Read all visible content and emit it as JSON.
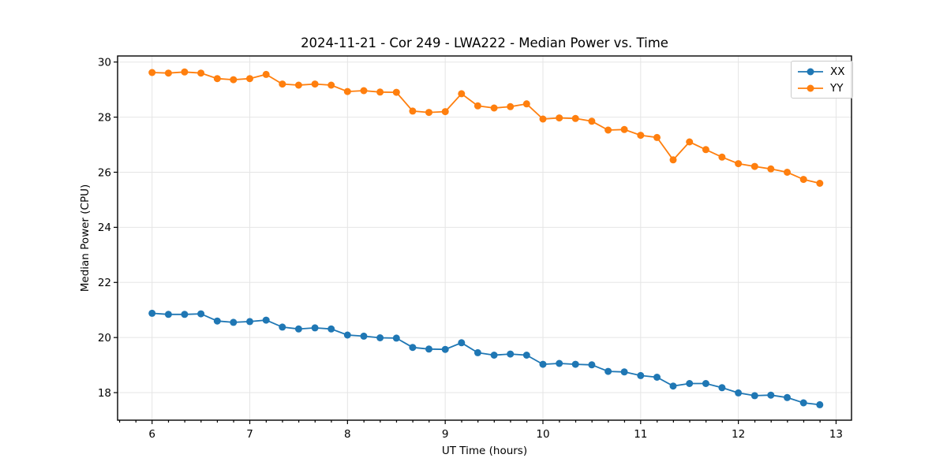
{
  "window": {
    "background": "#ffffff"
  },
  "chart_data": {
    "type": "line",
    "title": "2024-11-21 - Cor 249 - LWA222 - Median Power vs. Time",
    "xlabel": "UT Time (hours)",
    "ylabel": "Median Power (CPU)",
    "xlim": [
      5.647,
      13.158
    ],
    "ylim": [
      17.0,
      30.22
    ],
    "xticks": [
      6,
      7,
      8,
      9,
      10,
      11,
      12,
      13
    ],
    "yticks": [
      18,
      20,
      22,
      24,
      26,
      28,
      30
    ],
    "x_minor_tick_step": 0.1667,
    "grid": true,
    "legend": {
      "position": "upper right",
      "entries": [
        {
          "label": "XX",
          "color": "#1f77b4"
        },
        {
          "label": "YY",
          "color": "#ff7f0e"
        }
      ]
    },
    "x": [
      6.0,
      6.167,
      6.333,
      6.5,
      6.667,
      6.833,
      7.0,
      7.167,
      7.333,
      7.5,
      7.667,
      7.833,
      8.0,
      8.167,
      8.333,
      8.5,
      8.667,
      8.833,
      9.0,
      9.167,
      9.333,
      9.5,
      9.667,
      9.833,
      10.0,
      10.167,
      10.333,
      10.5,
      10.667,
      10.833,
      11.0,
      11.167,
      11.333,
      11.5,
      11.667,
      11.833,
      12.0,
      12.167,
      12.333,
      12.5,
      12.667,
      12.833
    ],
    "series": [
      {
        "name": "XX",
        "color": "#1f77b4",
        "marker": "circle",
        "values": [
          20.88,
          20.84,
          20.84,
          20.86,
          20.6,
          20.55,
          20.58,
          20.63,
          20.38,
          20.31,
          20.35,
          20.31,
          20.09,
          20.05,
          19.99,
          19.98,
          19.64,
          19.58,
          19.57,
          19.81,
          19.45,
          19.36,
          19.4,
          19.36,
          19.03,
          19.06,
          19.03,
          19.01,
          18.77,
          18.75,
          18.62,
          18.56,
          18.24,
          18.33,
          18.33,
          18.18,
          17.99,
          17.89,
          17.91,
          17.82,
          17.63,
          17.56
        ]
      },
      {
        "name": "YY",
        "color": "#ff7f0e",
        "marker": "circle",
        "values": [
          29.62,
          29.6,
          29.64,
          29.6,
          29.4,
          29.36,
          29.4,
          29.55,
          29.2,
          29.16,
          29.2,
          29.16,
          28.93,
          28.96,
          28.91,
          28.9,
          28.22,
          28.17,
          28.2,
          28.85,
          28.41,
          28.33,
          28.38,
          28.48,
          27.93,
          27.97,
          27.95,
          27.85,
          27.53,
          27.55,
          27.34,
          27.26,
          26.45,
          27.1,
          26.82,
          26.55,
          26.31,
          26.21,
          26.12,
          26.0,
          25.74,
          25.6
        ]
      }
    ]
  },
  "colors": {
    "grid": "#e5e5e5",
    "spine": "#000000",
    "tick": "#000000",
    "tick_label": "#000000",
    "legend_border": "#cccccc"
  }
}
